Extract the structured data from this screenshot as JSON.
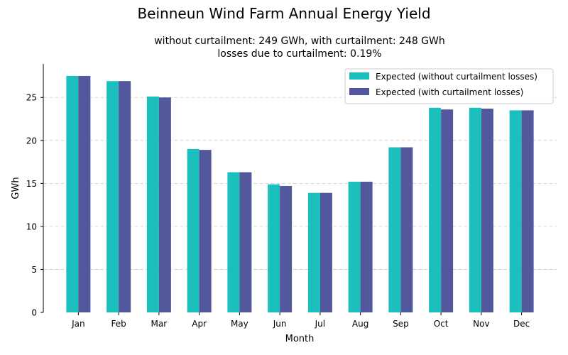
{
  "chart_data": {
    "type": "bar",
    "suptitle": "Beinneun Wind Farm Annual Energy Yield",
    "title_line1": "without curtailment: 249 GWh, with curtailment: 248 GWh",
    "title_line2": "losses due to curtailment: 0.19%",
    "xlabel": "Month",
    "ylabel": "GWh",
    "ylim": [
      0,
      28.9
    ],
    "yticks": [
      0,
      5,
      10,
      15,
      20,
      25
    ],
    "grid": true,
    "legend_position": "top-right",
    "categories": [
      "Jan",
      "Feb",
      "Mar",
      "Apr",
      "May",
      "Jun",
      "Jul",
      "Aug",
      "Sep",
      "Oct",
      "Nov",
      "Dec"
    ],
    "series": [
      {
        "name": "Expected (without curtailment losses)",
        "color": "#1bbfbc",
        "values": [
          27.5,
          26.9,
          25.1,
          19.0,
          16.3,
          14.9,
          13.9,
          15.2,
          19.2,
          23.8,
          23.8,
          23.5
        ]
      },
      {
        "name": "Expected (with curtailment losses)",
        "color": "#52589b",
        "values": [
          27.5,
          26.9,
          25.0,
          18.9,
          16.3,
          14.7,
          13.9,
          15.2,
          19.2,
          23.6,
          23.7,
          23.5
        ]
      }
    ]
  }
}
